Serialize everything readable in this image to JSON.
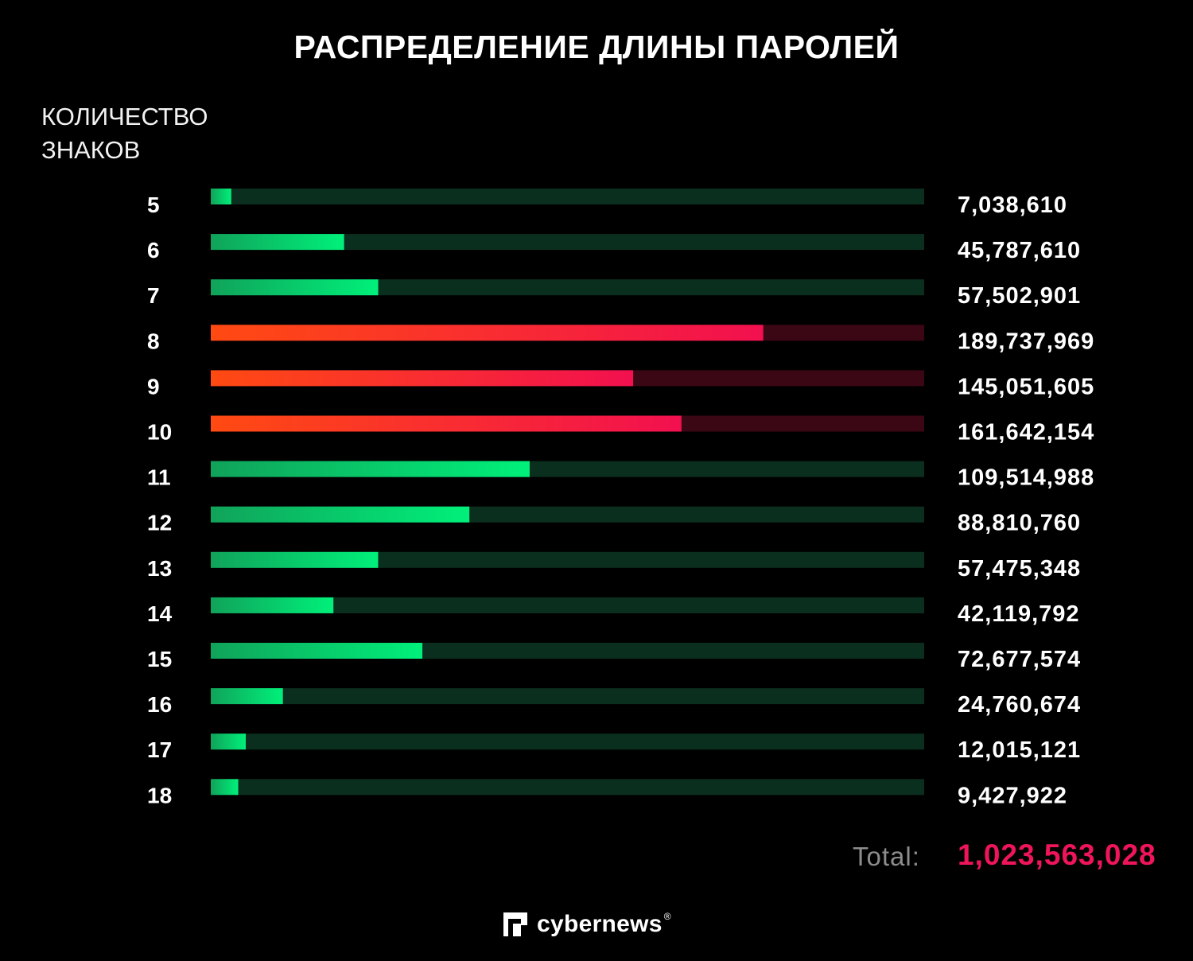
{
  "title": "РАСПРЕДЕЛЕНИЕ ДЛИНЫ ПАРОЛЕЙ",
  "ylabel_line1": "КОЛИЧЕСТВО",
  "ylabel_line2": "ЗНАКОВ",
  "total": {
    "label": "Total:",
    "value": "1,023,563,028"
  },
  "brand": {
    "name": "cybernews",
    "mark": "®",
    "icon": "cybernews-logo-icon"
  },
  "colors": {
    "green_start": "#10a35a",
    "green_end": "#00f07a",
    "green_track": "#0b2f1e",
    "red_start": "#ff4a12",
    "red_end": "#f2104f",
    "red_track": "#3b0714",
    "total_value": "#f0155a"
  },
  "chart_data": {
    "type": "bar",
    "orientation": "horizontal",
    "title": "РАСПРЕДЕЛЕНИЕ ДЛИНЫ ПАРОЛЕЙ",
    "ylabel": "КОЛИЧЕСТВО ЗНАКОВ",
    "categories": [
      "5",
      "6",
      "7",
      "8",
      "9",
      "10",
      "11",
      "12",
      "13",
      "14",
      "15",
      "16",
      "17",
      "18"
    ],
    "values": [
      7038610,
      45787610,
      57502901,
      189737969,
      145051605,
      161642154,
      109514988,
      88810760,
      57475348,
      42119792,
      72677574,
      24760674,
      12015121,
      9427922
    ],
    "value_labels": [
      "7,038,610",
      "45,787,610",
      "57,502,901",
      "189,737,969",
      "145,051,605",
      "161,642,154",
      "109,514,988",
      "88,810,760",
      "57,475,348",
      "42,119,792",
      "72,677,574",
      "24,760,674",
      "12,015,121",
      "9,427,922"
    ],
    "highlight": [
      "8",
      "9",
      "10"
    ],
    "xlim": [
      0,
      245000000
    ],
    "grid": false,
    "legend": "none"
  }
}
